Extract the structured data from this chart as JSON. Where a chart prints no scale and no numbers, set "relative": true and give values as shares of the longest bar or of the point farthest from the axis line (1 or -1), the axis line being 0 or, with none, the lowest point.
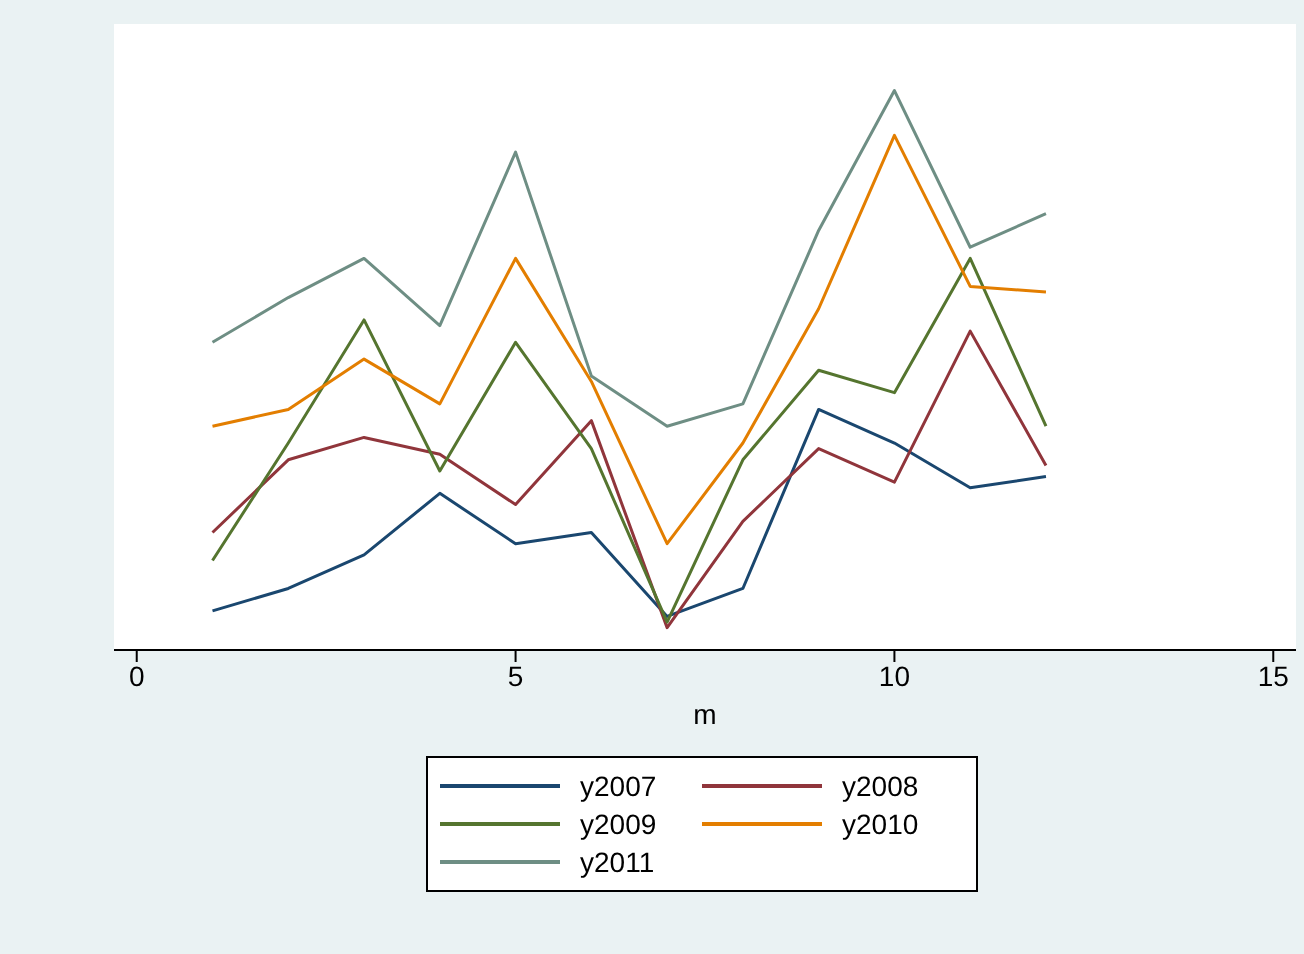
{
  "chart_data": {
    "type": "line",
    "relative": true,
    "xlabel": "m",
    "x": [
      1,
      2,
      3,
      4,
      5,
      6,
      7,
      8,
      9,
      10,
      11,
      12
    ],
    "xlim": [
      -0.3,
      15.3
    ],
    "xticks": [
      0,
      5,
      10,
      15
    ],
    "legend": "bottom",
    "series": [
      {
        "name": "y2007",
        "color": "#1a476f",
        "values": [
          0.07,
          0.11,
          0.17,
          0.28,
          0.19,
          0.21,
          0.06,
          0.11,
          0.43,
          0.37,
          0.29,
          0.31
        ]
      },
      {
        "name": "y2008",
        "color": "#90353b",
        "values": [
          0.21,
          0.34,
          0.38,
          0.35,
          0.26,
          0.41,
          0.04,
          0.23,
          0.36,
          0.3,
          0.57,
          0.33
        ]
      },
      {
        "name": "y2009",
        "color": "#55752f",
        "values": [
          0.16,
          0.37,
          0.59,
          0.32,
          0.55,
          0.36,
          0.05,
          0.34,
          0.5,
          0.46,
          0.7,
          0.4
        ]
      },
      {
        "name": "y2010",
        "color": "#e37e00",
        "values": [
          0.4,
          0.43,
          0.52,
          0.44,
          0.7,
          0.48,
          0.19,
          0.37,
          0.61,
          0.92,
          0.65,
          0.64
        ]
      },
      {
        "name": "y2011",
        "color": "#6e8e84",
        "values": [
          0.55,
          0.63,
          0.7,
          0.58,
          0.89,
          0.49,
          0.4,
          0.44,
          0.75,
          1,
          0.72,
          0.78
        ]
      }
    ]
  }
}
